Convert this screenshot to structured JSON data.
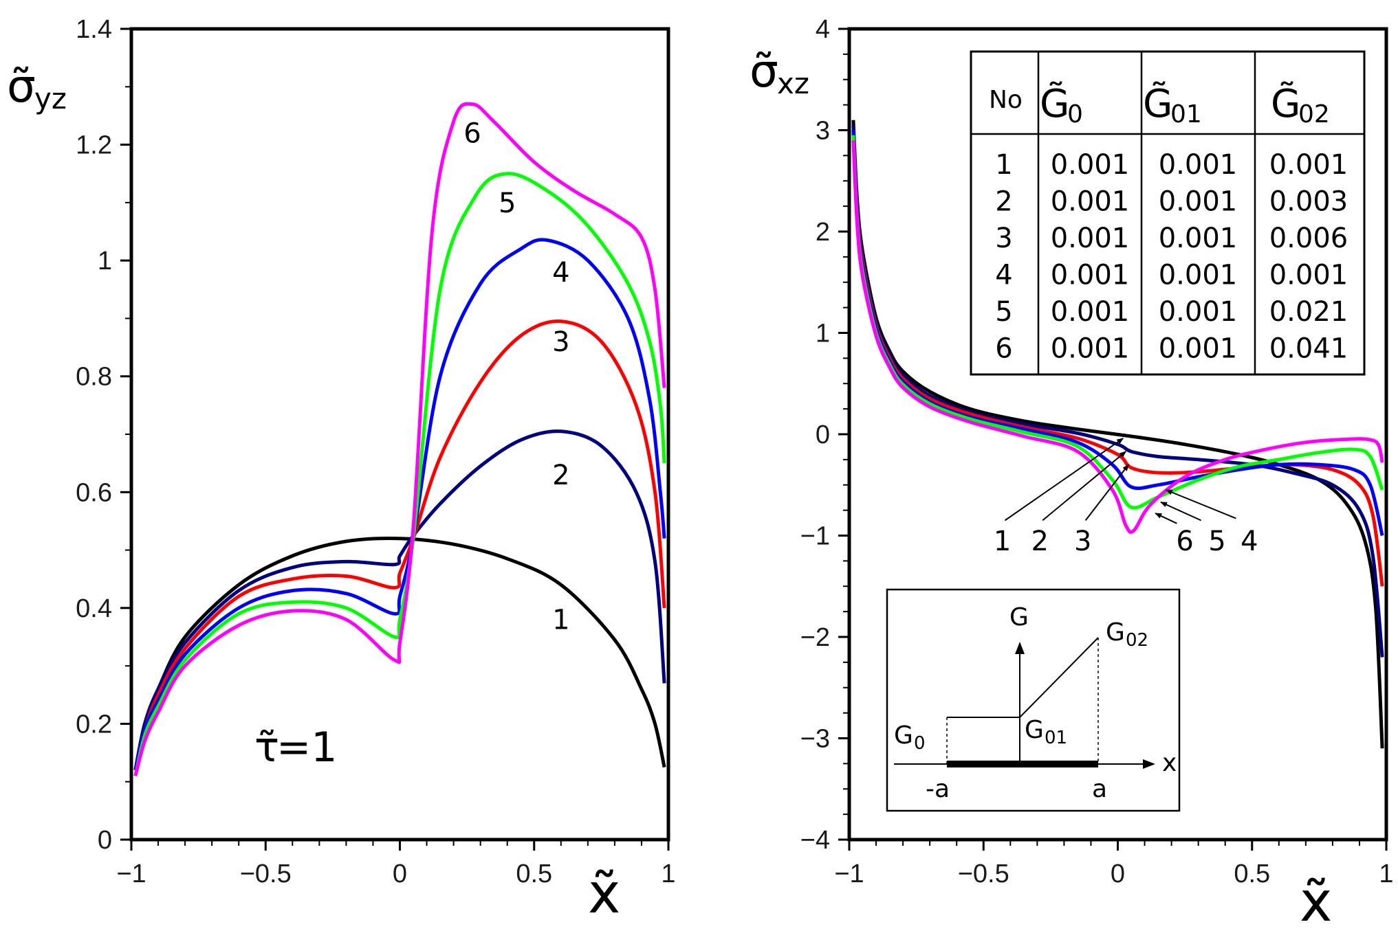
{
  "chart_data": [
    {
      "type": "line",
      "title": "",
      "xlabel": "x̃",
      "ylabel_symbol": "σ̃",
      "ylabel_subscript": "yz",
      "xlim": [
        -1,
        1
      ],
      "ylim": [
        0,
        1.4
      ],
      "xticks": [
        -1,
        -0.5,
        0,
        0.5,
        1
      ],
      "xtick_labels": [
        "−1",
        "−0.5",
        "0",
        "0.5",
        "1"
      ],
      "yticks": [
        0,
        0.2,
        0.4,
        0.6,
        0.8,
        1,
        1.2,
        1.4
      ],
      "ytick_labels": [
        "0",
        "0.2",
        "0.4",
        "0.6",
        "0.8",
        "1",
        "1.2",
        "1.4"
      ],
      "annotation_symbol": "τ̃",
      "annotation_value": "=1",
      "series": [
        {
          "name": "1",
          "color": "#000000",
          "x": [
            -0.985,
            -0.95,
            -0.9,
            -0.8,
            -0.6,
            -0.4,
            -0.2,
            0,
            0.2,
            0.4,
            0.6,
            0.8,
            0.9,
            0.95,
            0.985
          ],
          "y": [
            0.12,
            0.2,
            0.26,
            0.35,
            0.44,
            0.49,
            0.515,
            0.52,
            0.51,
            0.485,
            0.44,
            0.345,
            0.26,
            0.2,
            0.125
          ],
          "label_pos": [
            0.6,
            0.38
          ]
        },
        {
          "name": "2",
          "color": "#000080",
          "x": [
            -0.985,
            -0.95,
            -0.9,
            -0.8,
            -0.6,
            -0.4,
            -0.2,
            -0.02,
            0.0,
            0.05,
            0.15,
            0.3,
            0.45,
            0.6,
            0.75,
            0.88,
            0.95,
            0.985
          ],
          "y": [
            0.12,
            0.2,
            0.26,
            0.34,
            0.43,
            0.47,
            0.48,
            0.475,
            0.49,
            0.525,
            0.58,
            0.645,
            0.69,
            0.705,
            0.68,
            0.6,
            0.48,
            0.27
          ],
          "label_pos": [
            0.6,
            0.63
          ]
        },
        {
          "name": "3",
          "color": "#ff0000",
          "x": [
            -0.985,
            -0.95,
            -0.9,
            -0.8,
            -0.6,
            -0.4,
            -0.2,
            -0.02,
            0.0,
            0.05,
            0.15,
            0.3,
            0.45,
            0.6,
            0.75,
            0.88,
            0.95,
            0.985
          ],
          "y": [
            0.12,
            0.19,
            0.25,
            0.33,
            0.42,
            0.45,
            0.455,
            0.435,
            0.46,
            0.52,
            0.66,
            0.79,
            0.87,
            0.895,
            0.86,
            0.75,
            0.6,
            0.4
          ],
          "label_pos": [
            0.6,
            0.86
          ]
        },
        {
          "name": "4",
          "color": "#0000ff",
          "x": [
            -0.985,
            -0.95,
            -0.9,
            -0.8,
            -0.6,
            -0.4,
            -0.2,
            -0.02,
            0.0,
            0.05,
            0.15,
            0.3,
            0.45,
            0.55,
            0.7,
            0.85,
            0.93,
            0.97,
            0.985
          ],
          "y": [
            0.12,
            0.19,
            0.24,
            0.32,
            0.4,
            0.43,
            0.425,
            0.39,
            0.42,
            0.52,
            0.8,
            0.96,
            1.02,
            1.035,
            1.0,
            0.9,
            0.76,
            0.6,
            0.52
          ],
          "label_pos": [
            0.6,
            0.98
          ]
        },
        {
          "name": "5",
          "color": "#00ff00",
          "x": [
            -0.985,
            -0.95,
            -0.9,
            -0.8,
            -0.6,
            -0.4,
            -0.2,
            -0.02,
            0.0,
            0.05,
            0.15,
            0.28,
            0.4,
            0.55,
            0.7,
            0.85,
            0.93,
            0.97,
            0.985
          ],
          "y": [
            0.11,
            0.18,
            0.23,
            0.31,
            0.39,
            0.41,
            0.4,
            0.35,
            0.38,
            0.52,
            0.95,
            1.11,
            1.15,
            1.12,
            1.06,
            0.96,
            0.86,
            0.75,
            0.65
          ],
          "label_pos": [
            0.4,
            1.1
          ]
        },
        {
          "name": "6",
          "color": "#ff00ff",
          "x": [
            -0.985,
            -0.95,
            -0.9,
            -0.8,
            -0.6,
            -0.4,
            -0.2,
            -0.02,
            0.0,
            0.05,
            0.12,
            0.2,
            0.27,
            0.35,
            0.5,
            0.65,
            0.8,
            0.9,
            0.95,
            0.985
          ],
          "y": [
            0.11,
            0.17,
            0.22,
            0.3,
            0.37,
            0.395,
            0.38,
            0.31,
            0.34,
            0.54,
            1.05,
            1.24,
            1.27,
            1.24,
            1.17,
            1.12,
            1.08,
            1.04,
            0.95,
            0.78
          ],
          "label_pos": [
            0.27,
            1.22
          ]
        }
      ]
    },
    {
      "type": "line",
      "title": "",
      "xlabel": "x̃",
      "ylabel_symbol": "σ̃",
      "ylabel_subscript": "xz",
      "xlim": [
        -1,
        1
      ],
      "ylim": [
        -4,
        4
      ],
      "xticks": [
        -1,
        -0.5,
        0,
        0.5,
        1
      ],
      "xtick_labels": [
        "−1",
        "−0.5",
        "0",
        "0.5",
        "1"
      ],
      "yticks": [
        -4,
        -3,
        -2,
        -1,
        0,
        1,
        2,
        3,
        4
      ],
      "ytick_labels": [
        "−4",
        "−3",
        "−2",
        "−1",
        "0",
        "1",
        "2",
        "3",
        "4"
      ],
      "series": [
        {
          "name": "1",
          "color": "#000000",
          "x": [
            -0.985,
            -0.97,
            -0.95,
            -0.9,
            -0.85,
            -0.8,
            -0.7,
            -0.55,
            -0.35,
            -0.15,
            0.05,
            0.25,
            0.45,
            0.6,
            0.75,
            0.85,
            0.92,
            0.96,
            0.985
          ],
          "y": [
            3.1,
            2.3,
            1.8,
            1.15,
            0.82,
            0.62,
            0.42,
            0.25,
            0.13,
            0.05,
            -0.02,
            -0.1,
            -0.2,
            -0.3,
            -0.45,
            -0.68,
            -1.05,
            -1.7,
            -3.1
          ]
        },
        {
          "name": "2",
          "color": "#000080",
          "x": [
            -0.985,
            -0.97,
            -0.95,
            -0.9,
            -0.85,
            -0.8,
            -0.7,
            -0.55,
            -0.35,
            -0.15,
            0.0,
            0.05,
            0.15,
            0.3,
            0.5,
            0.65,
            0.8,
            0.9,
            0.95,
            0.985
          ],
          "y": [
            3.05,
            2.25,
            1.75,
            1.1,
            0.78,
            0.58,
            0.38,
            0.22,
            0.1,
            0.01,
            -0.1,
            -0.17,
            -0.22,
            -0.25,
            -0.3,
            -0.38,
            -0.5,
            -0.75,
            -1.2,
            -2.2
          ]
        },
        {
          "name": "3",
          "color": "#ff0000",
          "x": [
            -0.985,
            -0.97,
            -0.95,
            -0.9,
            -0.85,
            -0.8,
            -0.7,
            -0.55,
            -0.35,
            -0.15,
            0.0,
            0.05,
            0.15,
            0.3,
            0.5,
            0.65,
            0.8,
            0.9,
            0.95,
            0.985
          ],
          "y": [
            3.0,
            2.2,
            1.7,
            1.07,
            0.75,
            0.55,
            0.35,
            0.2,
            0.07,
            -0.04,
            -0.2,
            -0.33,
            -0.38,
            -0.37,
            -0.32,
            -0.3,
            -0.35,
            -0.5,
            -0.8,
            -1.5
          ]
        },
        {
          "name": "4",
          "color": "#0000ff",
          "x": [
            -0.985,
            -0.97,
            -0.95,
            -0.9,
            -0.85,
            -0.8,
            -0.7,
            -0.55,
            -0.35,
            -0.15,
            -0.02,
            0.05,
            0.15,
            0.3,
            0.45,
            0.6,
            0.75,
            0.88,
            0.94,
            0.985
          ],
          "y": [
            3.0,
            2.15,
            1.65,
            1.04,
            0.72,
            0.52,
            0.32,
            0.17,
            0.05,
            -0.08,
            -0.3,
            -0.52,
            -0.5,
            -0.42,
            -0.35,
            -0.3,
            -0.3,
            -0.35,
            -0.5,
            -1.0
          ]
        },
        {
          "name": "5",
          "color": "#00ff00",
          "x": [
            -0.985,
            -0.97,
            -0.95,
            -0.9,
            -0.85,
            -0.8,
            -0.7,
            -0.55,
            -0.35,
            -0.15,
            -0.02,
            0.05,
            0.15,
            0.3,
            0.45,
            0.6,
            0.75,
            0.88,
            0.94,
            0.985
          ],
          "y": [
            2.95,
            2.1,
            1.6,
            1.0,
            0.69,
            0.49,
            0.3,
            0.15,
            0.02,
            -0.12,
            -0.45,
            -0.72,
            -0.62,
            -0.45,
            -0.32,
            -0.25,
            -0.18,
            -0.15,
            -0.22,
            -0.55
          ]
        },
        {
          "name": "6",
          "color": "#ff00ff",
          "x": [
            -0.985,
            -0.97,
            -0.95,
            -0.9,
            -0.85,
            -0.8,
            -0.7,
            -0.55,
            -0.35,
            -0.15,
            -0.02,
            0.03,
            0.06,
            0.12,
            0.25,
            0.4,
            0.55,
            0.7,
            0.85,
            0.93,
            0.97,
            0.985
          ],
          "y": [
            2.9,
            2.05,
            1.55,
            0.97,
            0.66,
            0.46,
            0.27,
            0.12,
            -0.02,
            -0.17,
            -0.55,
            -0.9,
            -0.95,
            -0.7,
            -0.42,
            -0.25,
            -0.15,
            -0.08,
            -0.05,
            -0.05,
            -0.1,
            -0.28
          ]
        }
      ],
      "arrow_labels": [
        {
          "label": "1",
          "text_pos": [
            -0.43,
            -1.05
          ],
          "tail": [
            -0.42,
            -0.85
          ],
          "head": [
            0.02,
            -0.04
          ]
        },
        {
          "label": "2",
          "text_pos": [
            -0.29,
            -1.05
          ],
          "tail": [
            -0.28,
            -0.85
          ],
          "head": [
            0.03,
            -0.17
          ]
        },
        {
          "label": "3",
          "text_pos": [
            -0.13,
            -1.05
          ],
          "tail": [
            -0.12,
            -0.85
          ],
          "head": [
            0.04,
            -0.3
          ]
        },
        {
          "label": "6",
          "text_pos": [
            0.25,
            -1.05
          ],
          "tail": [
            0.22,
            -0.88
          ],
          "head": [
            0.14,
            -0.78
          ]
        },
        {
          "label": "5",
          "text_pos": [
            0.37,
            -1.05
          ],
          "tail": [
            0.31,
            -0.85
          ],
          "head": [
            0.16,
            -0.67
          ]
        },
        {
          "label": "4",
          "text_pos": [
            0.49,
            -1.05
          ],
          "tail": [
            0.44,
            -0.83
          ],
          "head": [
            0.18,
            -0.55
          ]
        }
      ]
    }
  ],
  "table": {
    "no_header": "No",
    "col_symbol": "G̃",
    "col_subs": [
      "0",
      "01",
      "02"
    ],
    "rows": [
      {
        "no": "1",
        "g0": "0.001",
        "g01": "0.001",
        "g02": "0.001"
      },
      {
        "no": "2",
        "g0": "0.001",
        "g01": "0.001",
        "g02": "0.003"
      },
      {
        "no": "3",
        "g0": "0.001",
        "g01": "0.001",
        "g02": "0.006"
      },
      {
        "no": "4",
        "g0": "0.001",
        "g01": "0.001",
        "g02": "0.001"
      },
      {
        "no": "5",
        "g0": "0.001",
        "g01": "0.001",
        "g02": "0.021"
      },
      {
        "no": "6",
        "g0": "0.001",
        "g01": "0.001",
        "g02": "0.041"
      }
    ]
  },
  "inset": {
    "g_axis": "G",
    "x_axis": "x",
    "label_g0": "G",
    "label_g0_sub": "0",
    "label_g01": "G",
    "label_g01_sub": "01",
    "label_g02": "G",
    "label_g02_sub": "02",
    "left_end": "-a",
    "right_end": "a"
  }
}
